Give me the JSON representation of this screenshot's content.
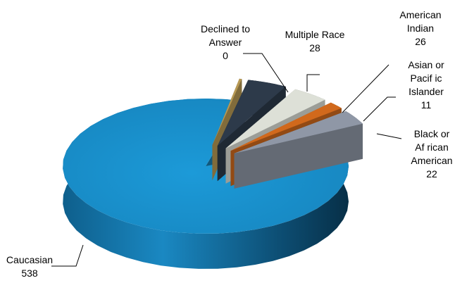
{
  "chart_data": {
    "type": "pie",
    "style": "3d-exploded",
    "title": "",
    "legend": "none",
    "slices": [
      {
        "category_lines": [
          "Caucasian"
        ],
        "value": 538,
        "value_label": "538",
        "color": "#1a8fcc"
      },
      {
        "category_lines": [
          "Black or",
          "Af rican",
          "American"
        ],
        "value": 22,
        "value_label": "22",
        "color": "#8f97a6"
      },
      {
        "category_lines": [
          "Asian or",
          "Pacif ic",
          "Islander"
        ],
        "value": 11,
        "value_label": "11",
        "color": "#d1691c"
      },
      {
        "category_lines": [
          "American",
          "Indian"
        ],
        "value": 26,
        "value_label": "26",
        "color": "#dde0d7"
      },
      {
        "category_lines": [
          "Multiple  Race"
        ],
        "value": 28,
        "value_label": "28",
        "color": "#2d3a4a"
      },
      {
        "category_lines": [
          "Declined to",
          "Answer"
        ],
        "value": 0,
        "value_label": "0",
        "color": "#b89a55"
      }
    ]
  }
}
